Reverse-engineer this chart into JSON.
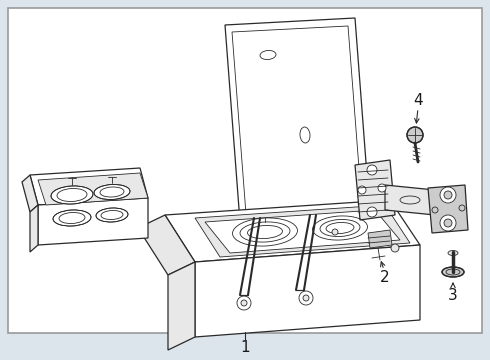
{
  "bg_color": "#dce4ec",
  "border_color": "#999999",
  "line_color": "#2a2a2a",
  "label_color": "#1a1a1a",
  "fig_width": 4.9,
  "fig_height": 3.6,
  "dpi": 100,
  "white": "#ffffff",
  "light_gray": "#e8e8e8",
  "mid_gray": "#cccccc",
  "dark_gray": "#aaaaaa"
}
